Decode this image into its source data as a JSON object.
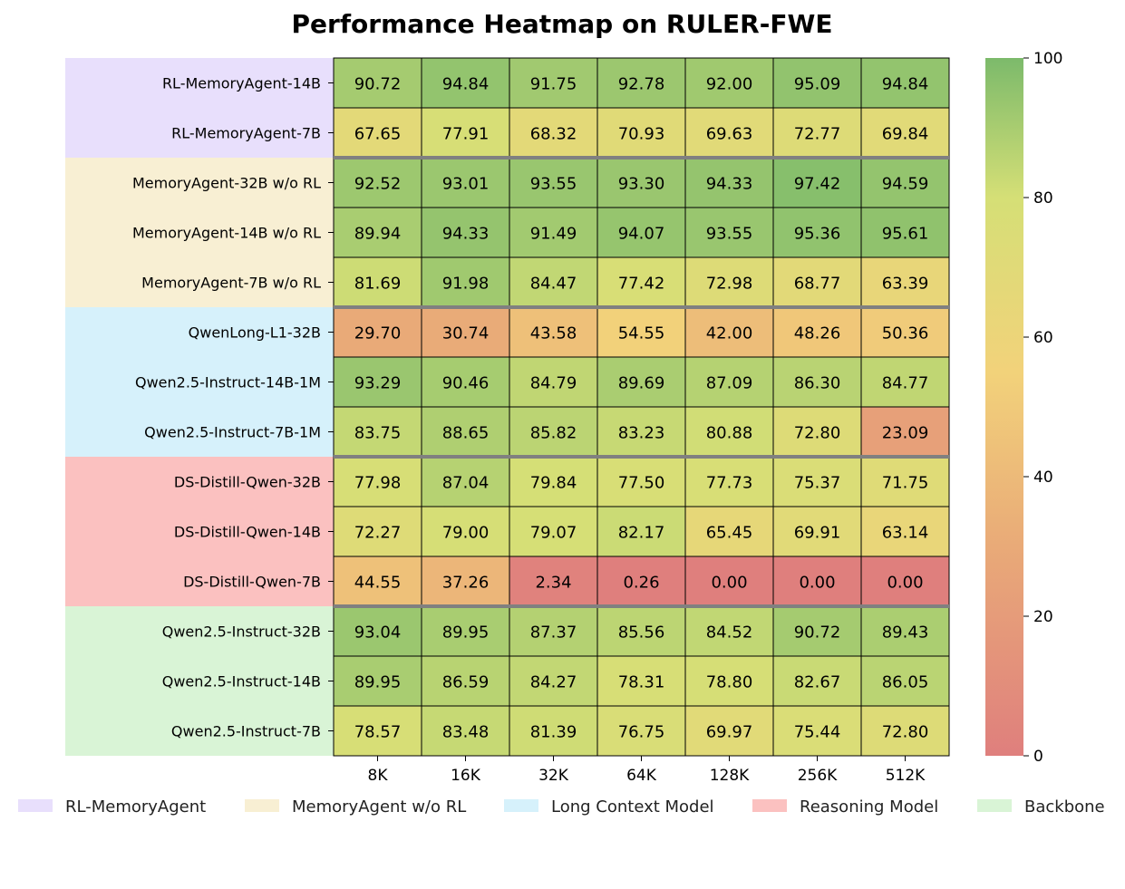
{
  "chart_data": {
    "type": "heatmap",
    "title": "Performance Heatmap on RULER-FWE",
    "xlabel": "",
    "ylabel": "",
    "columns": [
      "8K",
      "16K",
      "32K",
      "64K",
      "128K",
      "256K",
      "512K"
    ],
    "rows": [
      "RL-MemoryAgent-14B",
      "RL-MemoryAgent-7B",
      "MemoryAgent-32B w/o RL",
      "MemoryAgent-14B w/o RL",
      "MemoryAgent-7B w/o RL",
      "QwenLong-L1-32B",
      "Qwen2.5-Instruct-14B-1M",
      "Qwen2.5-Instruct-7B-1M",
      "DS-Distill-Qwen-32B",
      "DS-Distill-Qwen-14B",
      "DS-Distill-Qwen-7B",
      "Qwen2.5-Instruct-32B",
      "Qwen2.5-Instruct-14B",
      "Qwen2.5-Instruct-7B"
    ],
    "values": [
      [
        "90.72",
        "94.84",
        "91.75",
        "92.78",
        "92.00",
        "95.09",
        "94.84"
      ],
      [
        "67.65",
        "77.91",
        "68.32",
        "70.93",
        "69.63",
        "72.77",
        "69.84"
      ],
      [
        "92.52",
        "93.01",
        "93.55",
        "93.30",
        "94.33",
        "97.42",
        "94.59"
      ],
      [
        "89.94",
        "94.33",
        "91.49",
        "94.07",
        "93.55",
        "95.36",
        "95.61"
      ],
      [
        "81.69",
        "91.98",
        "84.47",
        "77.42",
        "72.98",
        "68.77",
        "63.39"
      ],
      [
        "29.70",
        "30.74",
        "43.58",
        "54.55",
        "42.00",
        "48.26",
        "50.36"
      ],
      [
        "93.29",
        "90.46",
        "84.79",
        "89.69",
        "87.09",
        "86.30",
        "84.77"
      ],
      [
        "83.75",
        "88.65",
        "85.82",
        "83.23",
        "80.88",
        "72.80",
        "23.09"
      ],
      [
        "77.98",
        "87.04",
        "79.84",
        "77.50",
        "77.73",
        "75.37",
        "71.75"
      ],
      [
        "72.27",
        "79.00",
        "79.07",
        "82.17",
        "65.45",
        "69.91",
        "63.14"
      ],
      [
        "44.55",
        "37.26",
        "2.34",
        "0.26",
        "0.00",
        "0.00",
        "0.00"
      ],
      [
        "93.04",
        "89.95",
        "87.37",
        "85.56",
        "84.52",
        "90.72",
        "89.43"
      ],
      [
        "89.95",
        "86.59",
        "84.27",
        "78.31",
        "78.80",
        "82.67",
        "86.05"
      ],
      [
        "78.57",
        "83.48",
        "81.39",
        "76.75",
        "69.97",
        "75.44",
        "72.80"
      ]
    ],
    "row_groups": [
      {
        "name": "RL-MemoryAgent",
        "start": 0,
        "count": 2,
        "color": "#e8dffc"
      },
      {
        "name": "MemoryAgent w/o RL",
        "start": 2,
        "count": 3,
        "color": "#f8efd3"
      },
      {
        "name": "Long Context Model",
        "start": 5,
        "count": 3,
        "color": "#d6f1fb"
      },
      {
        "name": "Reasoning Model",
        "start": 8,
        "count": 3,
        "color": "#fbc1c0"
      },
      {
        "name": "Backbone",
        "start": 11,
        "count": 3,
        "color": "#d9f4d6"
      }
    ],
    "color_scale": {
      "range": [
        0,
        100
      ],
      "ticks": [
        "0",
        "20",
        "40",
        "60",
        "80",
        "100"
      ],
      "stops": [
        {
          "value": 0,
          "color": "#df7f7d"
        },
        {
          "value": 30,
          "color": "#e9aa78"
        },
        {
          "value": 55,
          "color": "#f2d27a"
        },
        {
          "value": 80,
          "color": "#d5df76"
        },
        {
          "value": 100,
          "color": "#7cba6b"
        }
      ]
    },
    "legend_position": "bottom",
    "grid": false
  }
}
